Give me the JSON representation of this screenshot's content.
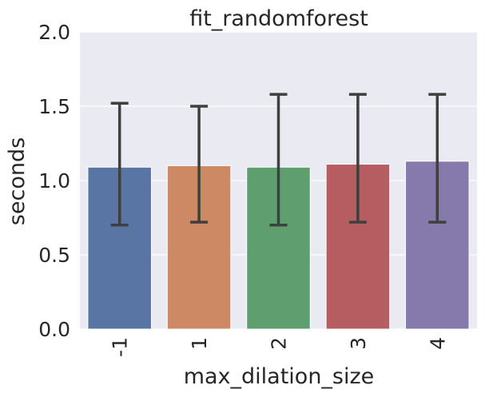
{
  "chart_data": {
    "type": "bar",
    "title": "fit_randomforest",
    "xlabel": "max_dilation_size",
    "ylabel": "seconds",
    "categories": [
      "-1",
      "1",
      "2",
      "3",
      "4"
    ],
    "values": [
      1.09,
      1.1,
      1.09,
      1.11,
      1.13
    ],
    "error_low": [
      0.7,
      0.72,
      0.7,
      0.72,
      0.72
    ],
    "error_high": [
      1.52,
      1.5,
      1.58,
      1.58,
      1.58
    ],
    "colors": [
      "#5875a4",
      "#cc8963",
      "#5f9e6e",
      "#b55d60",
      "#857aab"
    ],
    "ylim": [
      0,
      2.0
    ],
    "yticks": [
      "0.0",
      "0.5",
      "1.0",
      "1.5",
      "2.0"
    ],
    "ytick_values": [
      0,
      0.5,
      1.0,
      1.5,
      2.0
    ],
    "grid": true,
    "background": "#eaeaf2",
    "errorbar_color": "#3f3f3f"
  }
}
